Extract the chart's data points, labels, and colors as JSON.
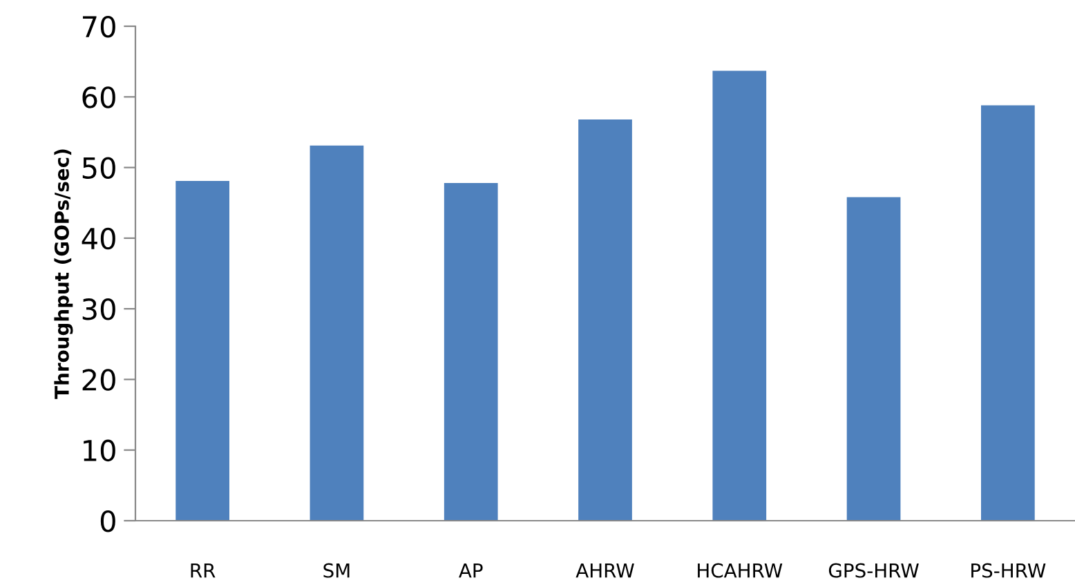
{
  "chart_data": {
    "type": "bar",
    "ylabel": "Throughput (GOPs/sec)",
    "categories": [
      "RR",
      "SM",
      "AP",
      "AHRW",
      "HCAHRW",
      "GPS-HRW",
      "PS-HRW"
    ],
    "values": [
      48.1,
      53.1,
      47.8,
      56.8,
      63.7,
      45.8,
      58.8
    ],
    "color": "#4f81bd",
    "ylim": [
      0,
      70
    ],
    "yticks": [
      0,
      10,
      20,
      30,
      40,
      50,
      60,
      70
    ],
    "grid": false
  }
}
